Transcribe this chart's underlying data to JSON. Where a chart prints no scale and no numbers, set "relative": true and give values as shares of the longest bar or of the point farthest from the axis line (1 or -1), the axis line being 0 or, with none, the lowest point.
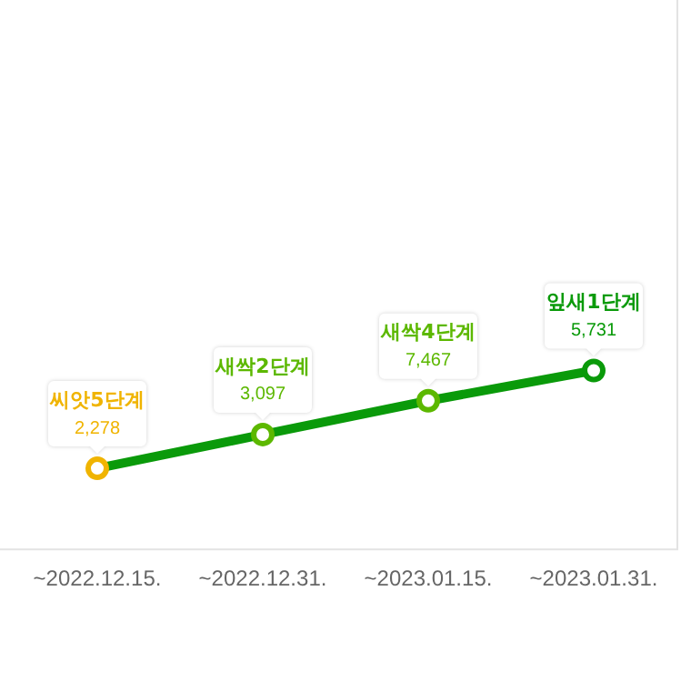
{
  "chart_data": {
    "type": "line",
    "relative": true,
    "categories": [
      "~2022.12.15.",
      "~2022.12.31.",
      "~2023.01.15.",
      "~2023.01.31."
    ],
    "values": [
      0.45,
      0.64,
      0.83,
      1
    ],
    "color": "#0a9a0a",
    "colors": [
      "#f0b400",
      "#5cb800",
      "#5cb800",
      "#0a9a0a"
    ],
    "marker": "circle",
    "annotations": [
      {
        "text": "씨앗5단계\n2,278",
        "x": "~2022.12.15.",
        "y": 0.45
      },
      {
        "text": "새싹2단계\n3,097",
        "x": "~2022.12.31.",
        "y": 0.64
      },
      {
        "text": "새싹4단계\n7,467",
        "x": "~2023.01.15.",
        "y": 0.83
      },
      {
        "text": "잎새1단계\n5,731",
        "x": "~2023.01.31.",
        "y": 1
      }
    ]
  }
}
